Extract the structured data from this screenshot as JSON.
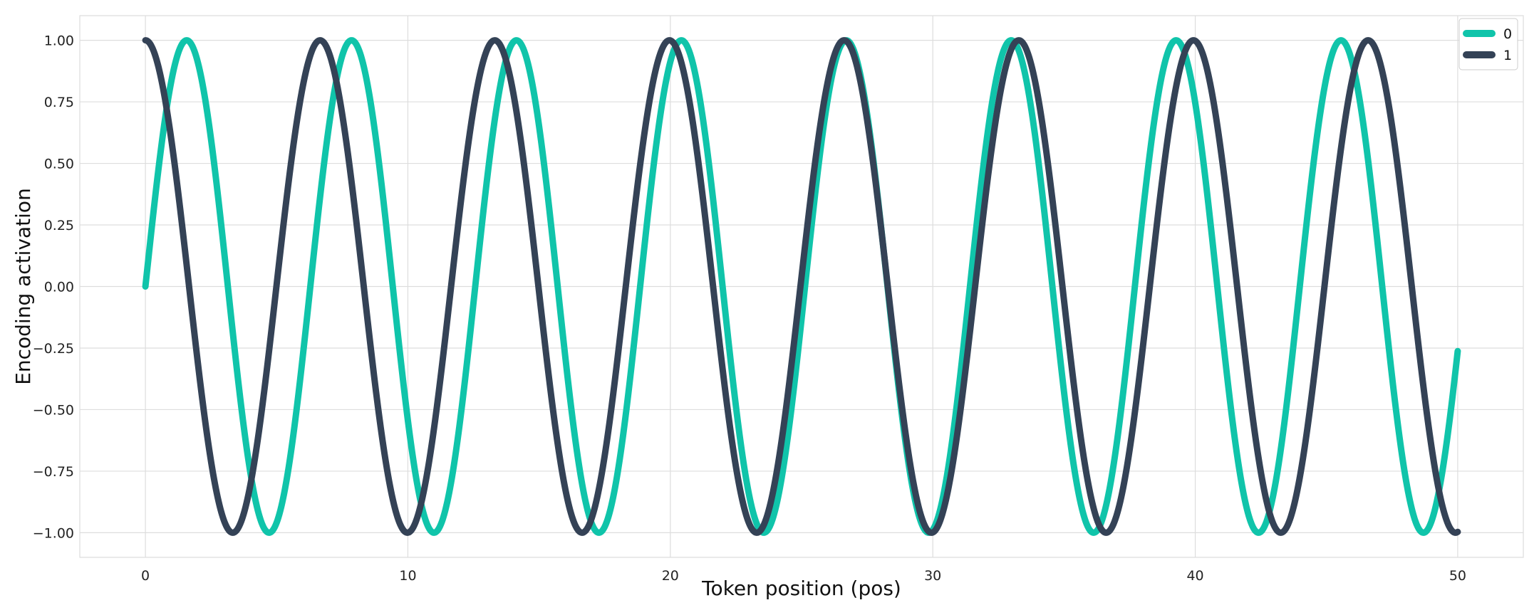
{
  "chart_data": {
    "type": "line",
    "title": "",
    "xlabel": "Token position (pos)",
    "ylabel": "Encoding activation",
    "xlim": [
      -2.5,
      52.5
    ],
    "ylim": [
      -1.1,
      1.1
    ],
    "x_ticks": [
      0,
      10,
      20,
      30,
      40,
      50
    ],
    "x_tick_labels": [
      "0",
      "10",
      "20",
      "30",
      "40",
      "50"
    ],
    "y_ticks": [
      1.0,
      0.75,
      0.5,
      0.25,
      0.0,
      -0.25,
      -0.5,
      -0.75,
      -1.0
    ],
    "y_tick_labels": [
      "1.00",
      "0.75",
      "0.50",
      "0.25",
      "0.00",
      "−0.25",
      "−0.50",
      "−0.75",
      "−1.00"
    ],
    "grid": true,
    "legend": "top-right",
    "series": [
      {
        "name": "0",
        "color": "#10c4aa",
        "function": "sin",
        "frequency": 1.0,
        "x_range": [
          0,
          50
        ]
      },
      {
        "name": "1",
        "color": "#344256",
        "function": "cos",
        "frequency": 0.9441,
        "x_range": [
          0,
          50
        ]
      }
    ]
  }
}
